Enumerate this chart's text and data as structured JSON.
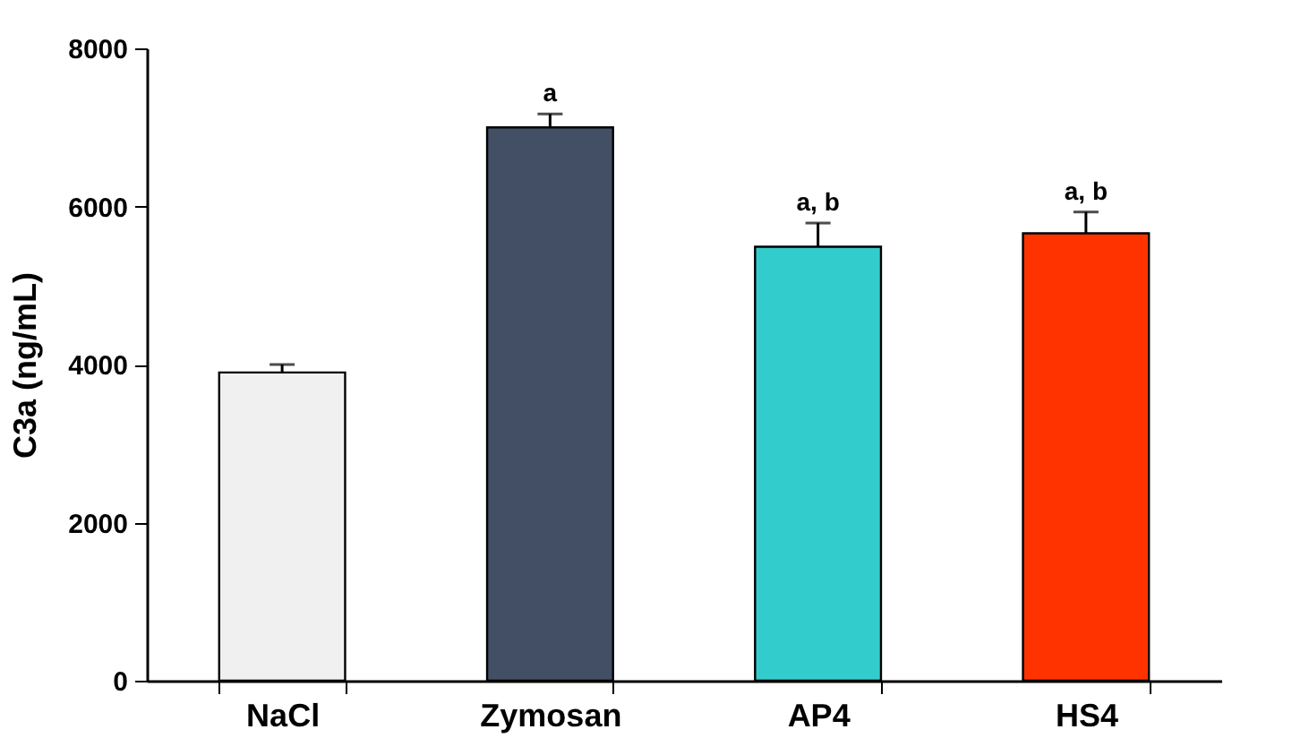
{
  "chart_data": {
    "type": "bar",
    "ylabel": "C3a (ng/mL)",
    "categories": [
      "NaCl",
      "Zymosan",
      "AP4",
      "HS4"
    ],
    "values": [
      3900,
      7000,
      5490,
      5660
    ],
    "colors": [
      "#f0f0f0",
      "#434f64",
      "#33cccc",
      "#ff3300"
    ],
    "errors": [
      [
        3900,
        4000
      ],
      [
        7000,
        7170
      ],
      [
        5490,
        5790
      ],
      [
        5660,
        5930
      ]
    ],
    "ylim": [
      0,
      8000
    ],
    "yticks": [
      0,
      2000,
      4000,
      6000,
      8000
    ],
    "grid": false,
    "annotations": [
      {
        "text": "a",
        "x": "Zymosan",
        "y": 7170
      },
      {
        "text": "a, b",
        "x": "AP4",
        "y": 5790
      },
      {
        "text": "a, b",
        "x": "HS4",
        "y": 5930
      }
    ]
  }
}
